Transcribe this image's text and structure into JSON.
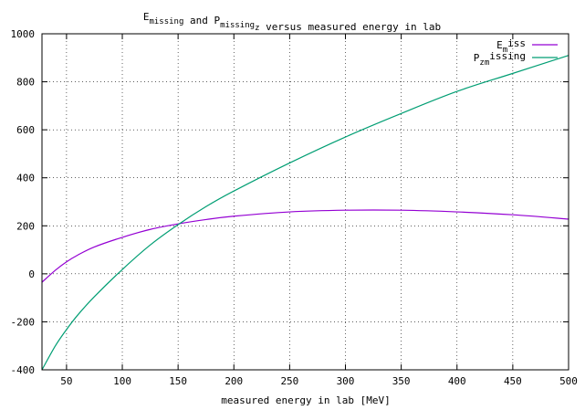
{
  "chart_data": {
    "type": "line",
    "title": {
      "parts": [
        {
          "text": "E",
          "sub": "missing"
        },
        {
          "text": " and "
        },
        {
          "text": "P",
          "sub": "missing",
          "subsub": "z"
        },
        {
          "text": " versus measured energy in lab"
        }
      ]
    },
    "xlabel": "measured energy in lab [MeV]",
    "ylabel": "",
    "xlim": [
      28,
      500
    ],
    "ylim": [
      -400,
      1000
    ],
    "xticks": [
      50,
      100,
      150,
      200,
      250,
      300,
      350,
      400,
      450,
      500
    ],
    "yticks": [
      -400,
      -200,
      0,
      200,
      400,
      600,
      800,
      1000
    ],
    "grid": true,
    "legend_position": "top-right",
    "series": [
      {
        "name": "E_{miss}",
        "legend": {
          "base": "E",
          "sub": "m",
          "rest": "iss"
        },
        "color": "#9400d3",
        "x": [
          28,
          40,
          50,
          60,
          75,
          100,
          125,
          150,
          175,
          200,
          250,
          300,
          350,
          400,
          450,
          500
        ],
        "y": [
          -35,
          15,
          50,
          78,
          112,
          152,
          185,
          208,
          226,
          240,
          258,
          265,
          265,
          258,
          246,
          228
        ]
      },
      {
        "name": "P_{zmissing}",
        "legend": {
          "base": "P",
          "sub": "zm",
          "rest": "issing"
        },
        "color": "#009e73",
        "x": [
          28,
          40,
          50,
          60,
          75,
          100,
          125,
          150,
          175,
          200,
          250,
          300,
          350,
          400,
          450,
          500
        ],
        "y": [
          -400,
          -300,
          -232,
          -172,
          -95,
          18,
          120,
          205,
          280,
          345,
          462,
          570,
          668,
          760,
          835,
          910
        ]
      }
    ]
  }
}
